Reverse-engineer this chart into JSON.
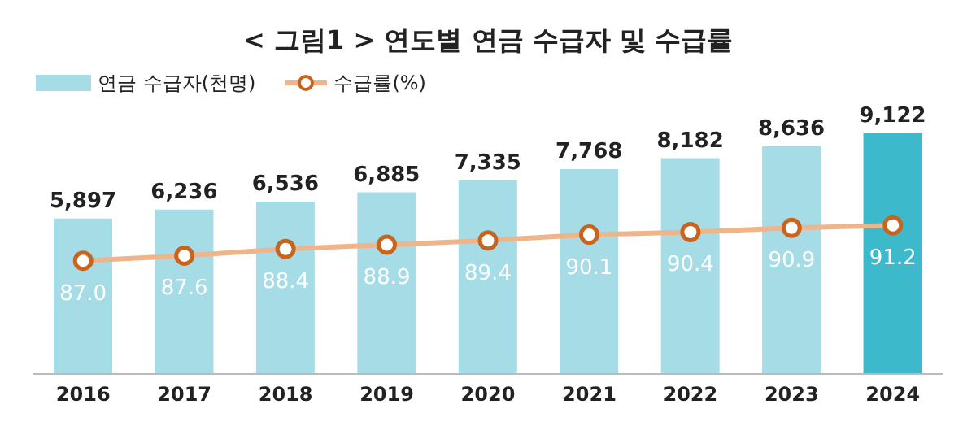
{
  "chart_data": {
    "type": "bar",
    "title": "< 그림1 >  연도별 연금 수급자 및 수급률",
    "categories": [
      "2016",
      "2017",
      "2018",
      "2019",
      "2020",
      "2021",
      "2022",
      "2023",
      "2024"
    ],
    "series": [
      {
        "name": "연금 수급자(천명)",
        "colors": [
          "#a6dce6",
          "#a6dce6",
          "#a6dce6",
          "#a6dce6",
          "#a6dce6",
          "#a6dce6",
          "#a6dce6",
          "#a6dce6",
          "#3cb9cb"
        ],
        "values": [
          5897,
          6236,
          6536,
          6885,
          7335,
          7768,
          8182,
          8636,
          9122
        ],
        "value_labels": [
          "5,897",
          "6,236",
          "6,536",
          "6,885",
          "7,335",
          "7,768",
          "8,182",
          "8,636",
          "9,122"
        ]
      },
      {
        "name": "수급률(%)",
        "type": "line",
        "axis": "y2",
        "color": "#f0b48a",
        "marker": "circle",
        "values": [
          87.0,
          87.6,
          88.4,
          88.9,
          89.4,
          90.1,
          90.4,
          90.9,
          91.2
        ],
        "value_labels": [
          "87.0",
          "87.6",
          "88.4",
          "88.9",
          "89.4",
          "90.1",
          "90.4",
          "90.9",
          "91.2"
        ]
      }
    ],
    "tick_labels": "x",
    "legend": "top left"
  }
}
